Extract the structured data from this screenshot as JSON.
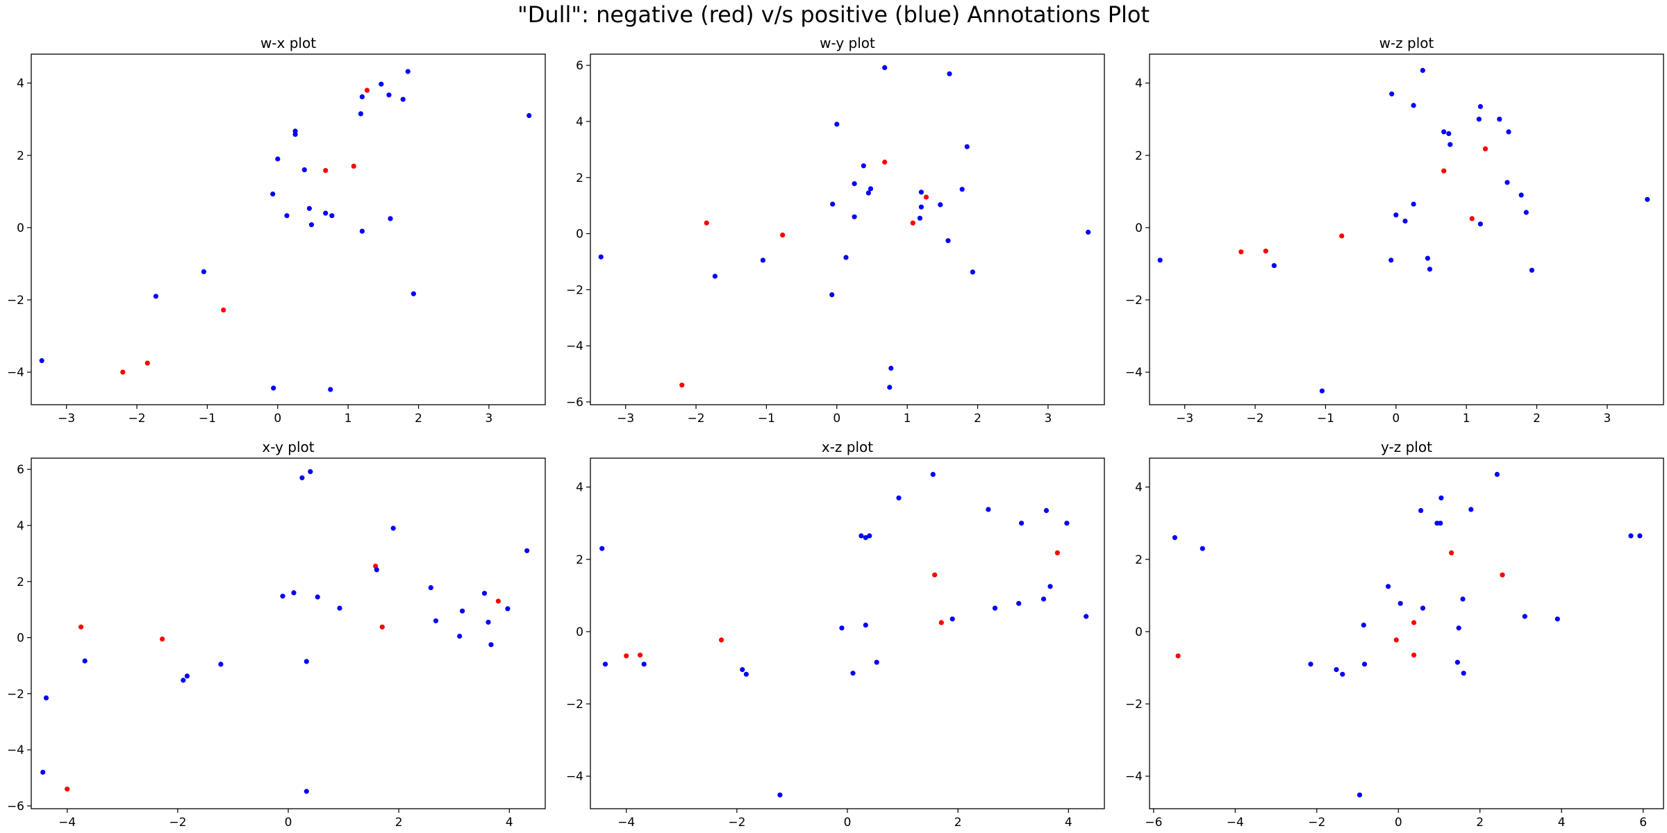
{
  "title": "\"Dull\": negative (red) v/s positive (blue) Annotations Plot",
  "colors": {
    "negative": "#ff0000",
    "positive": "#0000ff"
  },
  "chart_data": [
    {
      "type": "scatter",
      "title": "w-x plot",
      "xlim": [
        -3.5,
        3.8
      ],
      "ylim": [
        -4.9,
        4.8
      ],
      "xticks": [
        -3,
        -2,
        -1,
        0,
        1,
        2,
        3
      ],
      "yticks": [
        -4,
        -2,
        0,
        2,
        4
      ],
      "series": [
        {
          "class": "negative",
          "points": [
            [
              -2.2,
              -4.0
            ],
            [
              -1.85,
              -3.75
            ],
            [
              -0.77,
              -2.28
            ],
            [
              0.68,
              1.58
            ],
            [
              1.08,
              1.7
            ],
            [
              1.27,
              3.8
            ]
          ]
        },
        {
          "class": "positive",
          "points": [
            [
              -3.35,
              -3.68
            ],
            [
              -1.73,
              -1.9
            ],
            [
              -1.05,
              -1.22
            ],
            [
              -0.06,
              -4.44
            ],
            [
              -0.07,
              0.93
            ],
            [
              0.0,
              1.9
            ],
            [
              0.13,
              0.33
            ],
            [
              0.25,
              2.67
            ],
            [
              0.25,
              2.58
            ],
            [
              0.38,
              1.6
            ],
            [
              0.45,
              0.53
            ],
            [
              0.48,
              0.08
            ],
            [
              0.68,
              0.4
            ],
            [
              0.75,
              -4.48
            ],
            [
              0.77,
              0.33
            ],
            [
              1.18,
              3.15
            ],
            [
              1.2,
              -0.1
            ],
            [
              1.2,
              3.62
            ],
            [
              1.47,
              3.97
            ],
            [
              1.58,
              3.67
            ],
            [
              1.6,
              0.25
            ],
            [
              1.78,
              3.55
            ],
            [
              1.85,
              4.32
            ],
            [
              1.93,
              -1.83
            ],
            [
              3.57,
              3.1
            ]
          ]
        }
      ]
    },
    {
      "type": "scatter",
      "title": "w-y plot",
      "xlim": [
        -3.5,
        3.8
      ],
      "ylim": [
        -6.1,
        6.4
      ],
      "xticks": [
        -3,
        -2,
        -1,
        0,
        1,
        2,
        3
      ],
      "yticks": [
        -6,
        -4,
        -2,
        0,
        2,
        4,
        6
      ],
      "series": [
        {
          "class": "negative",
          "points": [
            [
              -2.2,
              -5.4
            ],
            [
              -1.85,
              0.38
            ],
            [
              -0.77,
              -0.05
            ],
            [
              0.68,
              2.55
            ],
            [
              1.08,
              0.38
            ],
            [
              1.27,
              1.3
            ]
          ]
        },
        {
          "class": "positive",
          "points": [
            [
              -3.35,
              -0.83
            ],
            [
              -1.73,
              -1.52
            ],
            [
              -1.05,
              -0.95
            ],
            [
              -0.06,
              1.05
            ],
            [
              -0.07,
              -2.18
            ],
            [
              0.0,
              3.9
            ],
            [
              0.13,
              -0.85
            ],
            [
              0.25,
              0.6
            ],
            [
              0.25,
              1.78
            ],
            [
              0.38,
              2.42
            ],
            [
              0.45,
              1.45
            ],
            [
              0.48,
              1.6
            ],
            [
              0.68,
              5.92
            ],
            [
              0.75,
              -5.48
            ],
            [
              0.77,
              -4.8
            ],
            [
              1.18,
              0.55
            ],
            [
              1.2,
              0.95
            ],
            [
              1.2,
              1.48
            ],
            [
              1.47,
              1.03
            ],
            [
              1.58,
              -0.25
            ],
            [
              1.6,
              5.7
            ],
            [
              1.78,
              1.58
            ],
            [
              1.85,
              3.1
            ],
            [
              1.93,
              -1.37
            ],
            [
              3.57,
              0.05
            ]
          ]
        }
      ]
    },
    {
      "type": "scatter",
      "title": "w-z plot",
      "xlim": [
        -3.5,
        3.8
      ],
      "ylim": [
        -4.9,
        4.8
      ],
      "xticks": [
        -3,
        -2,
        -1,
        0,
        1,
        2,
        3
      ],
      "yticks": [
        -4,
        -2,
        0,
        2,
        4
      ],
      "series": [
        {
          "class": "negative",
          "points": [
            [
              -2.2,
              -0.67
            ],
            [
              -1.85,
              -0.65
            ],
            [
              -0.77,
              -0.23
            ],
            [
              0.68,
              1.57
            ],
            [
              1.08,
              0.25
            ],
            [
              1.27,
              2.18
            ]
          ]
        },
        {
          "class": "positive",
          "points": [
            [
              -3.35,
              -0.9
            ],
            [
              -1.73,
              -1.05
            ],
            [
              -1.05,
              -4.52
            ],
            [
              -0.06,
              3.7
            ],
            [
              -0.07,
              -0.9
            ],
            [
              0.0,
              0.35
            ],
            [
              0.13,
              0.18
            ],
            [
              0.25,
              0.65
            ],
            [
              0.25,
              3.38
            ],
            [
              0.38,
              4.35
            ],
            [
              0.45,
              -0.85
            ],
            [
              0.48,
              -1.15
            ],
            [
              0.68,
              2.65
            ],
            [
              0.75,
              2.6
            ],
            [
              0.77,
              2.3
            ],
            [
              1.18,
              3.0
            ],
            [
              1.2,
              0.1
            ],
            [
              1.2,
              3.35
            ],
            [
              1.47,
              3.0
            ],
            [
              1.58,
              1.25
            ],
            [
              1.6,
              2.65
            ],
            [
              1.78,
              0.9
            ],
            [
              1.85,
              0.42
            ],
            [
              1.93,
              -1.18
            ],
            [
              3.57,
              0.78
            ]
          ]
        }
      ]
    },
    {
      "type": "scatter",
      "title": "x-y plot",
      "xlim": [
        -4.65,
        4.65
      ],
      "ylim": [
        -6.1,
        6.4
      ],
      "xticks": [
        -4,
        -2,
        0,
        2,
        4
      ],
      "yticks": [
        -6,
        -4,
        -2,
        0,
        2,
        4,
        6
      ],
      "series": [
        {
          "class": "negative",
          "points": [
            [
              -4.0,
              -5.4
            ],
            [
              -3.75,
              0.38
            ],
            [
              -2.28,
              -0.05
            ],
            [
              1.58,
              2.55
            ],
            [
              1.7,
              0.38
            ],
            [
              3.8,
              1.3
            ]
          ]
        },
        {
          "class": "positive",
          "points": [
            [
              -4.44,
              -4.8
            ],
            [
              -4.38,
              -2.15
            ],
            [
              -3.68,
              -0.83
            ],
            [
              -1.9,
              -1.52
            ],
            [
              -1.83,
              -1.37
            ],
            [
              -1.22,
              -0.95
            ],
            [
              -0.1,
              1.48
            ],
            [
              0.1,
              1.6
            ],
            [
              0.25,
              5.7
            ],
            [
              0.33,
              -5.48
            ],
            [
              0.33,
              -0.85
            ],
            [
              0.4,
              5.92
            ],
            [
              0.53,
              1.45
            ],
            [
              0.93,
              1.05
            ],
            [
              1.6,
              2.42
            ],
            [
              1.9,
              3.9
            ],
            [
              2.58,
              1.78
            ],
            [
              2.67,
              0.6
            ],
            [
              3.1,
              0.05
            ],
            [
              3.15,
              0.95
            ],
            [
              3.55,
              1.58
            ],
            [
              3.62,
              0.55
            ],
            [
              3.67,
              -0.25
            ],
            [
              3.97,
              1.03
            ],
            [
              4.32,
              3.1
            ]
          ]
        }
      ]
    },
    {
      "type": "scatter",
      "title": "x-z plot",
      "xlim": [
        -4.65,
        4.65
      ],
      "ylim": [
        -4.9,
        4.8
      ],
      "xticks": [
        -4,
        -2,
        0,
        2,
        4
      ],
      "yticks": [
        -4,
        -2,
        0,
        2,
        4
      ],
      "series": [
        {
          "class": "negative",
          "points": [
            [
              -4.0,
              -0.67
            ],
            [
              -3.75,
              -0.65
            ],
            [
              -2.28,
              -0.23
            ],
            [
              1.58,
              1.57
            ],
            [
              1.7,
              0.25
            ],
            [
              3.8,
              2.18
            ]
          ]
        },
        {
          "class": "positive",
          "points": [
            [
              -4.44,
              2.3
            ],
            [
              -4.38,
              -0.9
            ],
            [
              -3.68,
              -0.9
            ],
            [
              -1.9,
              -1.05
            ],
            [
              -1.83,
              -1.18
            ],
            [
              -1.22,
              -4.52
            ],
            [
              -0.1,
              0.1
            ],
            [
              0.1,
              -1.15
            ],
            [
              0.25,
              2.65
            ],
            [
              0.33,
              0.18
            ],
            [
              0.33,
              2.6
            ],
            [
              0.4,
              2.65
            ],
            [
              0.53,
              -0.85
            ],
            [
              0.93,
              3.7
            ],
            [
              1.55,
              4.35
            ],
            [
              1.9,
              0.35
            ],
            [
              2.55,
              3.38
            ],
            [
              2.67,
              0.65
            ],
            [
              3.1,
              0.78
            ],
            [
              3.15,
              3.0
            ],
            [
              3.55,
              0.9
            ],
            [
              3.6,
              3.35
            ],
            [
              3.67,
              1.25
            ],
            [
              3.97,
              3.0
            ],
            [
              4.32,
              0.42
            ]
          ]
        }
      ]
    },
    {
      "type": "scatter",
      "title": "y-z plot",
      "xlim": [
        -6.1,
        6.5
      ],
      "ylim": [
        -4.9,
        4.8
      ],
      "xticks": [
        -6,
        -4,
        -2,
        0,
        2,
        4,
        6
      ],
      "yticks": [
        -4,
        -2,
        0,
        2,
        4
      ],
      "series": [
        {
          "class": "negative",
          "points": [
            [
              -5.4,
              -0.67
            ],
            [
              -0.05,
              -0.23
            ],
            [
              0.38,
              0.25
            ],
            [
              0.38,
              -0.65
            ],
            [
              1.3,
              2.18
            ],
            [
              2.55,
              1.57
            ]
          ]
        },
        {
          "class": "positive",
          "points": [
            [
              -5.48,
              2.6
            ],
            [
              -4.8,
              2.3
            ],
            [
              -2.15,
              -0.9
            ],
            [
              -1.52,
              -1.05
            ],
            [
              -1.37,
              -1.18
            ],
            [
              -0.95,
              -4.52
            ],
            [
              -0.85,
              0.18
            ],
            [
              -0.83,
              -0.9
            ],
            [
              -0.25,
              1.25
            ],
            [
              0.05,
              0.78
            ],
            [
              0.55,
              3.35
            ],
            [
              0.6,
              0.65
            ],
            [
              0.95,
              3.0
            ],
            [
              1.03,
              3.0
            ],
            [
              1.05,
              3.7
            ],
            [
              1.45,
              -0.85
            ],
            [
              1.48,
              0.1
            ],
            [
              1.58,
              0.9
            ],
            [
              1.6,
              -1.15
            ],
            [
              1.78,
              3.38
            ],
            [
              2.42,
              4.35
            ],
            [
              3.1,
              0.42
            ],
            [
              3.9,
              0.35
            ],
            [
              5.7,
              2.65
            ],
            [
              5.92,
              2.65
            ]
          ]
        }
      ]
    }
  ]
}
